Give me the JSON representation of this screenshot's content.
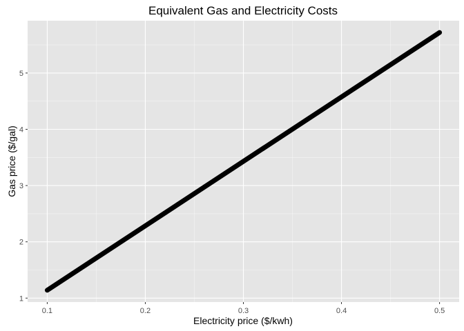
{
  "chart_data": {
    "type": "line",
    "title": "Equivalent Gas and Electricity Costs",
    "xlabel": "Electricity price ($/kwh)",
    "ylabel": "Gas price ($/gal)",
    "xlim": [
      0.08,
      0.52
    ],
    "ylim": [
      0.93,
      5.93
    ],
    "x_ticks": [
      0.1,
      0.2,
      0.3,
      0.4,
      0.5
    ],
    "x_tick_labels": [
      "0.1",
      "0.2",
      "0.3",
      "0.4",
      "0.5"
    ],
    "y_ticks": [
      1,
      2,
      3,
      4,
      5
    ],
    "y_tick_labels": [
      "1",
      "2",
      "3",
      "4",
      "5"
    ],
    "grid": true,
    "background": "#e5e5e5",
    "grid_color": "#ffffff",
    "series": [
      {
        "color": "#000000",
        "x": [
          0.1,
          0.5
        ],
        "y": [
          1.14,
          5.72
        ]
      }
    ]
  }
}
